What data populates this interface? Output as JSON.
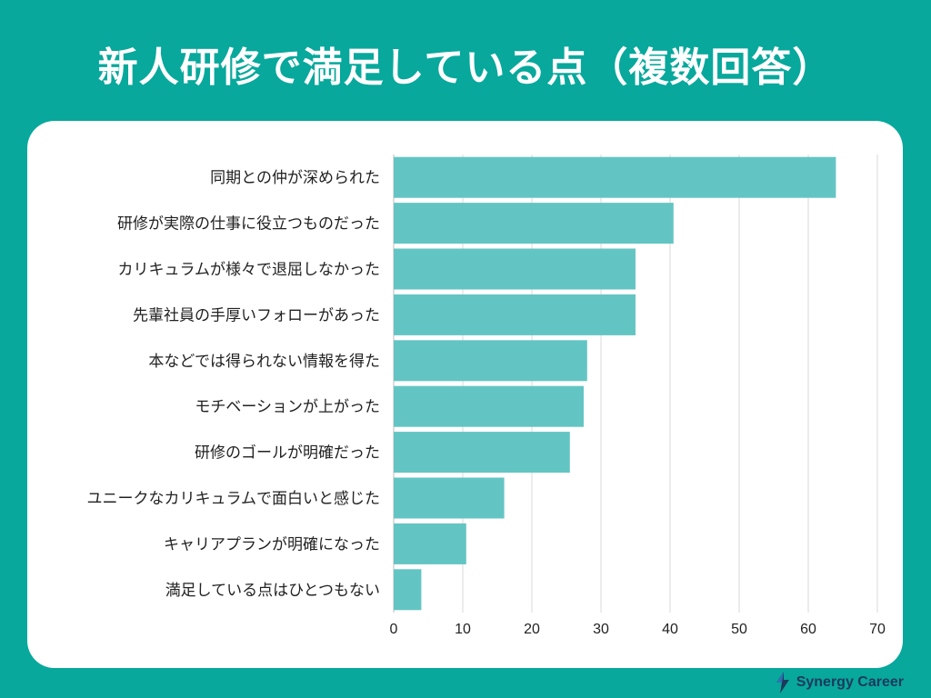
{
  "title": "新人研修で満足している点（複数回答）",
  "brand": {
    "name": "Synergy Career",
    "logo_icon": "synergy-logo-icon"
  },
  "colors": {
    "background": "#08a89c",
    "bar": "#63c5c3",
    "grid": "#d9d9d9",
    "text": "#222222"
  },
  "chart_data": {
    "type": "bar",
    "orientation": "horizontal",
    "title": "新人研修で満足している点（複数回答）",
    "categories": [
      "同期との仲が深められた",
      "研修が実際の仕事に役立つものだった",
      "カリキュラムが様々で退屈しなかった",
      "先輩社員の手厚いフォローがあった",
      "本などでは得られない情報を得た",
      "モチベーションが上がった",
      "研修のゴールが明確だった",
      "ユニークなカリキュラムで面白いと感じた",
      "キャリアプランが明確になった",
      "満足している点はひとつもない"
    ],
    "values": [
      64,
      40.5,
      35,
      35,
      28,
      27.5,
      25.5,
      16,
      10.5,
      4
    ],
    "xlim": [
      0,
      70
    ],
    "xticks": [
      0,
      10,
      20,
      30,
      40,
      50,
      60,
      70
    ],
    "xlabel": "",
    "ylabel": "",
    "grid": true
  }
}
